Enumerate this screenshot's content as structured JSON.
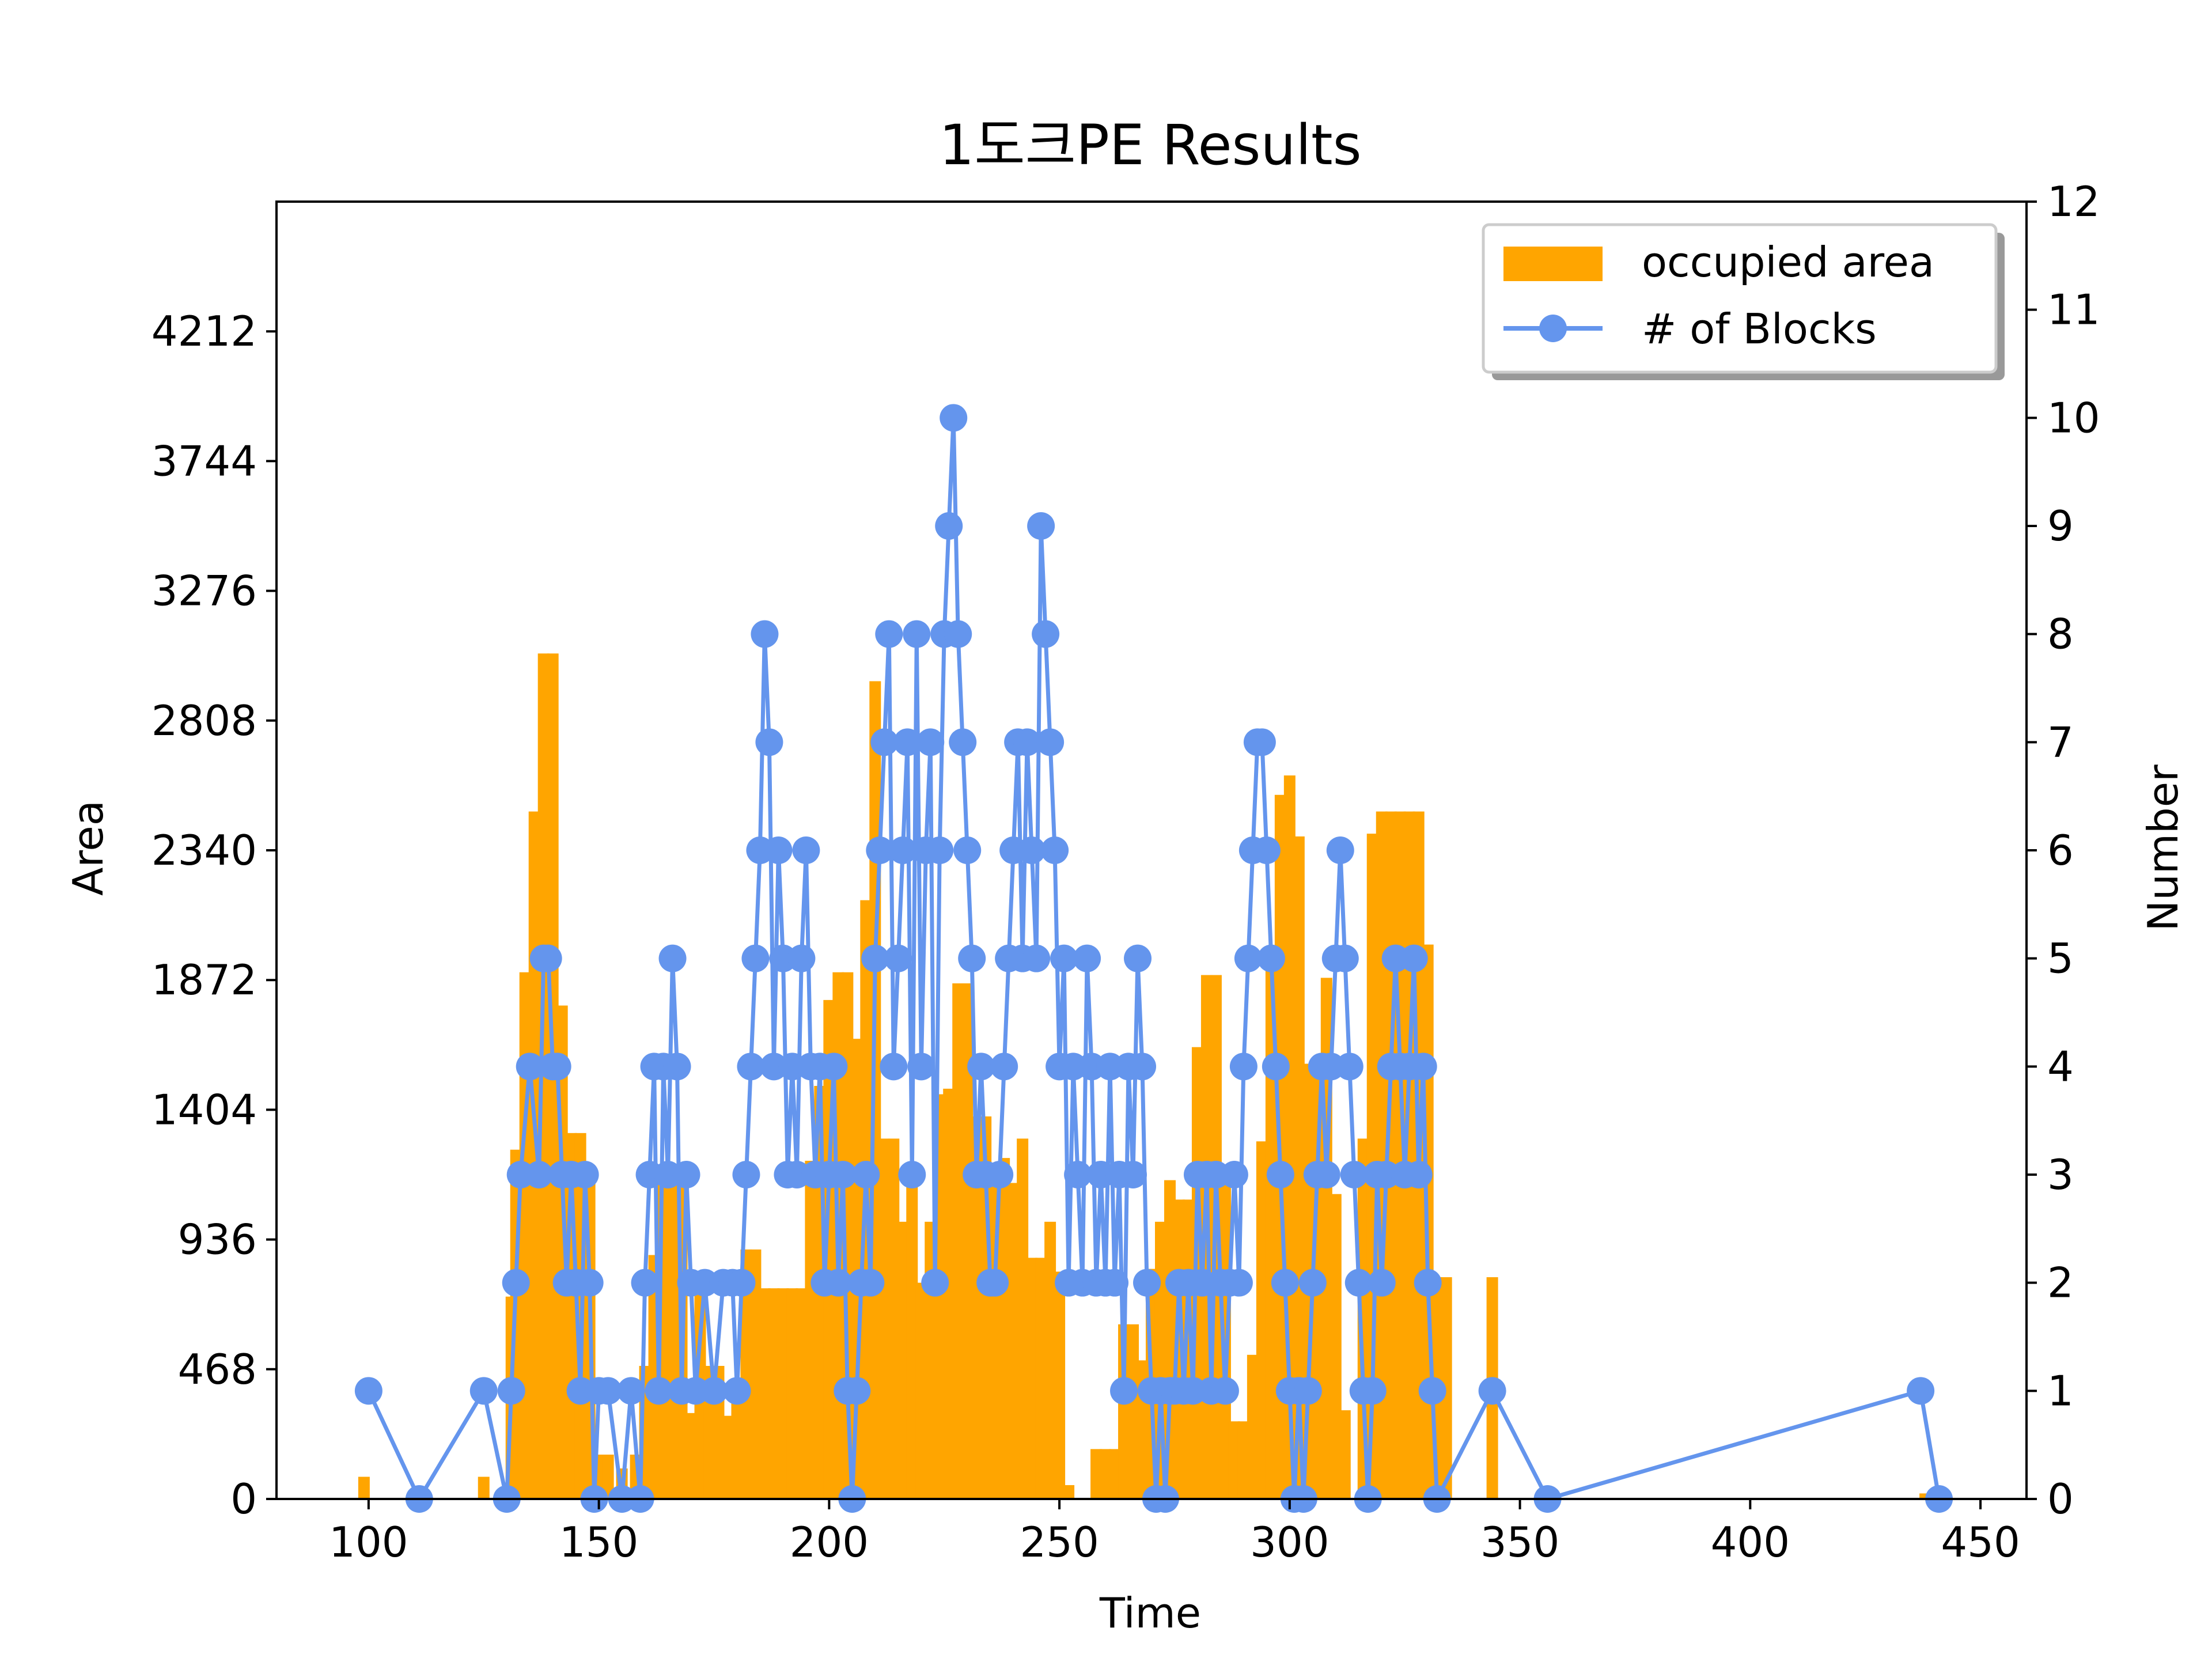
{
  "chart_data": {
    "type": "bar+line",
    "title": "1도크PE Results",
    "xlabel": "Time",
    "ylabel_left": "Area",
    "ylabel_right": "Number",
    "xlim": [
      80,
      460
    ],
    "ylim_left": [
      0,
      4680
    ],
    "ylim_right": [
      0,
      12
    ],
    "x_ticks": [
      100,
      150,
      200,
      250,
      300,
      350,
      400,
      450
    ],
    "y_left_ticks": [
      0,
      468,
      936,
      1404,
      1872,
      2340,
      2808,
      3276,
      3744,
      4212
    ],
    "y_right_ticks": [
      0,
      1,
      2,
      3,
      4,
      5,
      6,
      7,
      8,
      9,
      10,
      11,
      12
    ],
    "grid": false,
    "legend_position": "top-right",
    "legend": {
      "area_label": "occupied area",
      "blocks_label": "# of Blocks"
    },
    "colors": {
      "bars": "#FFA500",
      "line": "#6495ED"
    },
    "bars": {
      "name": "occupied area",
      "width": 2.5,
      "points": [
        [
          99,
          80
        ],
        [
          125,
          80
        ],
        [
          131,
          730
        ],
        [
          132,
          1260
        ],
        [
          134,
          1900
        ],
        [
          136,
          2480
        ],
        [
          138,
          3050
        ],
        [
          140,
          3050
        ],
        [
          142,
          1780
        ],
        [
          144,
          1320
        ],
        [
          146,
          1320
        ],
        [
          148,
          1160
        ],
        [
          150,
          160
        ],
        [
          152,
          160
        ],
        [
          155,
          110
        ],
        [
          158,
          160
        ],
        [
          160,
          480
        ],
        [
          162,
          880
        ],
        [
          164,
          1160
        ],
        [
          166,
          1160
        ],
        [
          168,
          1160
        ],
        [
          170,
          310
        ],
        [
          172,
          800
        ],
        [
          174,
          480
        ],
        [
          176,
          480
        ],
        [
          178,
          300
        ],
        [
          180,
          400
        ],
        [
          182,
          900
        ],
        [
          184,
          900
        ],
        [
          186,
          760
        ],
        [
          188,
          760
        ],
        [
          190,
          760
        ],
        [
          192,
          760
        ],
        [
          194,
          760
        ],
        [
          196,
          1220
        ],
        [
          198,
          1490
        ],
        [
          200,
          1800
        ],
        [
          202,
          1900
        ],
        [
          204,
          1900
        ],
        [
          206,
          1660
        ],
        [
          208,
          2160
        ],
        [
          210,
          2950
        ],
        [
          212,
          1300
        ],
        [
          214,
          1300
        ],
        [
          216,
          1000
        ],
        [
          218,
          1200
        ],
        [
          220,
          780
        ],
        [
          222,
          1000
        ],
        [
          224,
          1460
        ],
        [
          226,
          1480
        ],
        [
          228,
          1860
        ],
        [
          230,
          1860
        ],
        [
          232,
          1380
        ],
        [
          234,
          1380
        ],
        [
          236,
          1150
        ],
        [
          238,
          1230
        ],
        [
          240,
          1140
        ],
        [
          242,
          1300
        ],
        [
          244,
          870
        ],
        [
          246,
          870
        ],
        [
          248,
          1000
        ],
        [
          250,
          820
        ],
        [
          252,
          50
        ],
        [
          254,
          0
        ],
        [
          256,
          0
        ],
        [
          258,
          180
        ],
        [
          260,
          180
        ],
        [
          262,
          180
        ],
        [
          264,
          630
        ],
        [
          266,
          630
        ],
        [
          268,
          500
        ],
        [
          270,
          830
        ],
        [
          272,
          1000
        ],
        [
          274,
          1150
        ],
        [
          276,
          1080
        ],
        [
          278,
          1080
        ],
        [
          280,
          1630
        ],
        [
          282,
          1890
        ],
        [
          284,
          1890
        ],
        [
          286,
          1200
        ],
        [
          288,
          280
        ],
        [
          290,
          280
        ],
        [
          292,
          520
        ],
        [
          294,
          1290
        ],
        [
          296,
          1930
        ],
        [
          298,
          2540
        ],
        [
          300,
          2610
        ],
        [
          302,
          2390
        ],
        [
          304,
          1570
        ],
        [
          306,
          1570
        ],
        [
          308,
          1880
        ],
        [
          310,
          1100
        ],
        [
          312,
          320
        ],
        [
          314,
          0
        ],
        [
          316,
          1300
        ],
        [
          318,
          2400
        ],
        [
          320,
          2480
        ],
        [
          322,
          2480
        ],
        [
          324,
          2480
        ],
        [
          326,
          2480
        ],
        [
          328,
          2480
        ],
        [
          330,
          2000
        ],
        [
          332,
          800
        ],
        [
          334,
          800
        ],
        [
          344,
          800
        ],
        [
          438,
          20
        ],
        [
          440,
          20
        ]
      ]
    },
    "blocks": {
      "name": "# of Blocks",
      "points": [
        [
          100,
          1
        ],
        [
          111,
          0
        ],
        [
          125,
          1
        ],
        [
          130,
          0
        ],
        [
          131,
          1
        ],
        [
          132,
          2
        ],
        [
          133,
          3
        ],
        [
          135,
          4
        ],
        [
          137,
          3
        ],
        [
          138,
          5
        ],
        [
          139,
          5
        ],
        [
          140,
          4
        ],
        [
          141,
          4
        ],
        [
          142,
          3
        ],
        [
          143,
          2
        ],
        [
          144,
          3
        ],
        [
          145,
          2
        ],
        [
          146,
          1
        ],
        [
          147,
          3
        ],
        [
          148,
          2
        ],
        [
          149,
          0
        ],
        [
          150,
          1
        ],
        [
          152,
          1
        ],
        [
          155,
          0
        ],
        [
          157,
          1
        ],
        [
          159,
          0
        ],
        [
          160,
          2
        ],
        [
          161,
          3
        ],
        [
          162,
          4
        ],
        [
          163,
          1
        ],
        [
          164,
          4
        ],
        [
          165,
          3
        ],
        [
          166,
          5
        ],
        [
          167,
          4
        ],
        [
          168,
          1
        ],
        [
          169,
          3
        ],
        [
          170,
          2
        ],
        [
          171,
          1
        ],
        [
          173,
          2
        ],
        [
          175,
          1
        ],
        [
          177,
          2
        ],
        [
          179,
          2
        ],
        [
          180,
          1
        ],
        [
          181,
          2
        ],
        [
          182,
          3
        ],
        [
          183,
          4
        ],
        [
          184,
          5
        ],
        [
          185,
          6
        ],
        [
          186,
          8
        ],
        [
          187,
          7
        ],
        [
          188,
          4
        ],
        [
          189,
          6
        ],
        [
          190,
          5
        ],
        [
          191,
          3
        ],
        [
          192,
          4
        ],
        [
          193,
          3
        ],
        [
          194,
          5
        ],
        [
          195,
          6
        ],
        [
          196,
          4
        ],
        [
          197,
          3
        ],
        [
          198,
          4
        ],
        [
          199,
          2
        ],
        [
          200,
          3
        ],
        [
          201,
          4
        ],
        [
          202,
          2
        ],
        [
          203,
          3
        ],
        [
          204,
          1
        ],
        [
          205,
          0
        ],
        [
          206,
          1
        ],
        [
          207,
          2
        ],
        [
          208,
          3
        ],
        [
          209,
          2
        ],
        [
          210,
          5
        ],
        [
          211,
          6
        ],
        [
          212,
          7
        ],
        [
          213,
          8
        ],
        [
          214,
          4
        ],
        [
          215,
          5
        ],
        [
          216,
          6
        ],
        [
          217,
          7
        ],
        [
          218,
          3
        ],
        [
          219,
          8
        ],
        [
          220,
          4
        ],
        [
          221,
          6
        ],
        [
          222,
          7
        ],
        [
          223,
          2
        ],
        [
          224,
          6
        ],
        [
          225,
          8
        ],
        [
          226,
          9
        ],
        [
          227,
          10
        ],
        [
          228,
          8
        ],
        [
          229,
          7
        ],
        [
          230,
          6
        ],
        [
          231,
          5
        ],
        [
          232,
          3
        ],
        [
          233,
          4
        ],
        [
          234,
          3
        ],
        [
          235,
          2
        ],
        [
          236,
          2
        ],
        [
          237,
          3
        ],
        [
          238,
          4
        ],
        [
          239,
          5
        ],
        [
          240,
          6
        ],
        [
          241,
          7
        ],
        [
          242,
          5
        ],
        [
          243,
          7
        ],
        [
          244,
          6
        ],
        [
          245,
          5
        ],
        [
          246,
          9
        ],
        [
          247,
          8
        ],
        [
          248,
          7
        ],
        [
          249,
          6
        ],
        [
          250,
          4
        ],
        [
          251,
          5
        ],
        [
          252,
          2
        ],
        [
          253,
          4
        ],
        [
          254,
          3
        ],
        [
          255,
          2
        ],
        [
          256,
          5
        ],
        [
          257,
          4
        ],
        [
          258,
          2
        ],
        [
          259,
          3
        ],
        [
          260,
          2
        ],
        [
          261,
          4
        ],
        [
          262,
          2
        ],
        [
          263,
          3
        ],
        [
          264,
          1
        ],
        [
          265,
          4
        ],
        [
          266,
          3
        ],
        [
          267,
          5
        ],
        [
          268,
          4
        ],
        [
          269,
          2
        ],
        [
          270,
          1
        ],
        [
          271,
          0
        ],
        [
          272,
          1
        ],
        [
          273,
          0
        ],
        [
          274,
          1
        ],
        [
          275,
          1
        ],
        [
          276,
          2
        ],
        [
          277,
          1
        ],
        [
          278,
          2
        ],
        [
          279,
          1
        ],
        [
          280,
          3
        ],
        [
          281,
          2
        ],
        [
          282,
          3
        ],
        [
          283,
          1
        ],
        [
          284,
          3
        ],
        [
          285,
          2
        ],
        [
          286,
          1
        ],
        [
          287,
          2
        ],
        [
          288,
          3
        ],
        [
          289,
          2
        ],
        [
          290,
          4
        ],
        [
          291,
          5
        ],
        [
          292,
          6
        ],
        [
          293,
          7
        ],
        [
          294,
          7
        ],
        [
          295,
          6
        ],
        [
          296,
          5
        ],
        [
          297,
          4
        ],
        [
          298,
          3
        ],
        [
          299,
          2
        ],
        [
          300,
          1
        ],
        [
          301,
          0
        ],
        [
          302,
          1
        ],
        [
          303,
          0
        ],
        [
          304,
          1
        ],
        [
          305,
          2
        ],
        [
          306,
          3
        ],
        [
          307,
          4
        ],
        [
          308,
          3
        ],
        [
          309,
          4
        ],
        [
          310,
          5
        ],
        [
          311,
          6
        ],
        [
          312,
          5
        ],
        [
          313,
          4
        ],
        [
          314,
          3
        ],
        [
          315,
          2
        ],
        [
          316,
          1
        ],
        [
          317,
          0
        ],
        [
          318,
          1
        ],
        [
          319,
          3
        ],
        [
          320,
          2
        ],
        [
          321,
          3
        ],
        [
          322,
          4
        ],
        [
          323,
          5
        ],
        [
          324,
          4
        ],
        [
          325,
          3
        ],
        [
          326,
          4
        ],
        [
          327,
          5
        ],
        [
          328,
          3
        ],
        [
          329,
          4
        ],
        [
          330,
          2
        ],
        [
          331,
          1
        ],
        [
          332,
          0
        ],
        [
          344,
          1
        ],
        [
          356,
          0
        ],
        [
          437,
          1
        ],
        [
          441,
          0
        ]
      ]
    }
  }
}
